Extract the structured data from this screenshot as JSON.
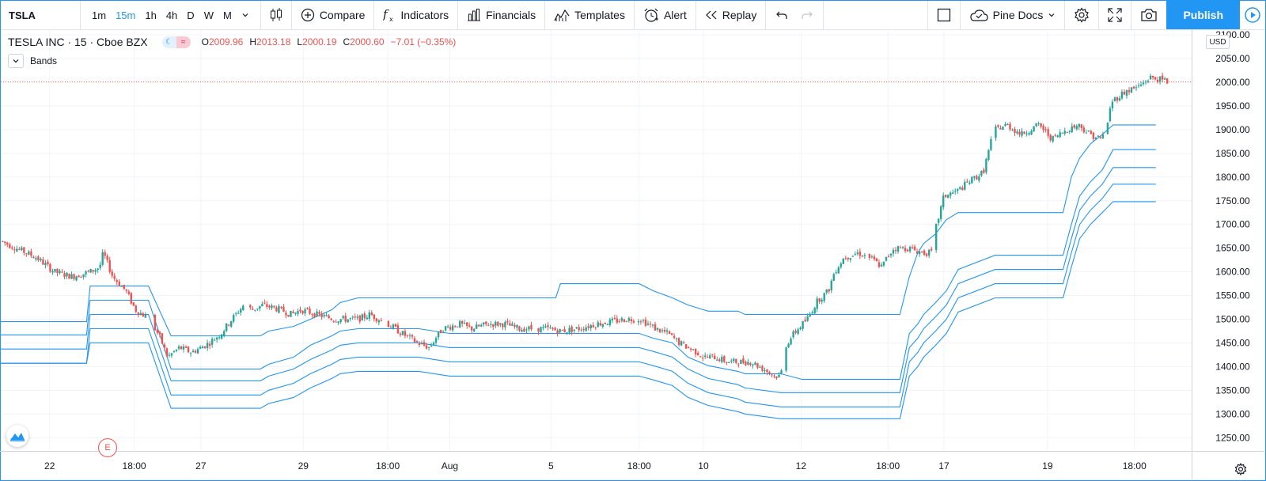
{
  "toolbar": {
    "symbol": "TSLA",
    "intervals": [
      "1m",
      "15m",
      "1h",
      "4h",
      "D",
      "W",
      "M"
    ],
    "active_interval": "15m",
    "compare": "Compare",
    "indicators": "Indicators",
    "financials": "Financials",
    "templates": "Templates",
    "alert": "Alert",
    "replay": "Replay",
    "pine_docs": "Pine Docs",
    "publish": "Publish"
  },
  "legend": {
    "symbol": "TESLA INC · 15 · Cboe BZX",
    "open_label": "O",
    "open": "2009.96",
    "high_label": "H",
    "high": "2013.18",
    "low_label": "L",
    "low": "2000.19",
    "close_label": "C",
    "close": "2000.60",
    "change": "−7.01 (−0.35%)",
    "study": "Bands"
  },
  "price_scale": {
    "currency": "USD",
    "last_price": "2000.60"
  },
  "earnings_marker": "E",
  "colors": {
    "accent": "#2196f3",
    "up": "#26a69a",
    "down": "#ef5350",
    "band": "#2196f3",
    "last_price_line": "#ef5350"
  },
  "chart_data": {
    "type": "candlestick",
    "symbol": "TSLA",
    "interval": "15",
    "exchange": "Cboe BZX",
    "y_ticks": [
      1250,
      1300,
      1350,
      1400,
      1450,
      1500,
      1550,
      1600,
      1650,
      1700,
      1750,
      1800,
      1850,
      1900,
      1950,
      2000,
      2050,
      2100
    ],
    "ylim": [
      1220,
      2110
    ],
    "x_ticks": [
      "22",
      "18:00",
      "27",
      "29",
      "18:00",
      "Aug",
      "5",
      "18:00",
      "10",
      "12",
      "18:00",
      "17",
      "19",
      "18:00"
    ],
    "last_price": 2000.6,
    "price_path": [
      [
        0,
        1665
      ],
      [
        3,
        1630
      ],
      [
        4.5,
        1600
      ],
      [
        6,
        1590
      ],
      [
        7.5,
        1600
      ],
      [
        8.3,
        1610
      ],
      [
        8.6,
        1640
      ],
      [
        9.4,
        1590
      ],
      [
        10.5,
        1560
      ],
      [
        11.3,
        1520
      ],
      [
        12.5,
        1500
      ],
      [
        13.4,
        1460
      ],
      [
        14,
        1420
      ],
      [
        14.5,
        1430
      ],
      [
        15,
        1440
      ],
      [
        16,
        1430
      ],
      [
        16.8,
        1440
      ],
      [
        17.5,
        1450
      ],
      [
        18.5,
        1470
      ],
      [
        19.4,
        1500
      ],
      [
        20.4,
        1530
      ],
      [
        21.1,
        1520
      ],
      [
        22,
        1530
      ],
      [
        23.5,
        1520
      ],
      [
        24.4,
        1510
      ],
      [
        25.2,
        1520
      ],
      [
        26.5,
        1510
      ],
      [
        28,
        1500
      ],
      [
        29,
        1500
      ],
      [
        30,
        1500
      ],
      [
        31,
        1510
      ],
      [
        32.5,
        1490
      ],
      [
        33.7,
        1470
      ],
      [
        35,
        1450
      ],
      [
        36,
        1440
      ],
      [
        36.5,
        1460
      ],
      [
        37.1,
        1480
      ],
      [
        38.5,
        1490
      ],
      [
        39.5,
        1480
      ],
      [
        41,
        1490
      ],
      [
        42.3,
        1490
      ],
      [
        43.5,
        1480
      ],
      [
        45,
        1480
      ],
      [
        46,
        1480
      ],
      [
        47,
        1475
      ],
      [
        48.5,
        1480
      ],
      [
        50,
        1490
      ],
      [
        51.3,
        1495
      ],
      [
        52.5,
        1500
      ],
      [
        53.7,
        1500
      ],
      [
        55,
        1480
      ],
      [
        56,
        1470
      ],
      [
        57,
        1450
      ],
      [
        57.7,
        1440
      ],
      [
        58.5,
        1430
      ],
      [
        59,
        1420
      ],
      [
        60,
        1420
      ],
      [
        61,
        1410
      ],
      [
        62,
        1410
      ],
      [
        63,
        1410
      ],
      [
        63.7,
        1400
      ],
      [
        64.4,
        1390
      ],
      [
        65,
        1380
      ],
      [
        65.5,
        1380
      ],
      [
        65.8,
        1440
      ],
      [
        66.6,
        1470
      ],
      [
        67.7,
        1500
      ],
      [
        68.6,
        1540
      ],
      [
        69.5,
        1560
      ],
      [
        70,
        1600
      ],
      [
        70.8,
        1630
      ],
      [
        72,
        1640
      ],
      [
        73,
        1630
      ],
      [
        74,
        1610
      ],
      [
        74.4,
        1630
      ],
      [
        75,
        1650
      ],
      [
        76.2,
        1650
      ],
      [
        77.5,
        1640
      ],
      [
        78.3,
        1640
      ],
      [
        78.5,
        1690
      ],
      [
        79.2,
        1760
      ],
      [
        80.3,
        1770
      ],
      [
        81.3,
        1790
      ],
      [
        82.5,
        1810
      ],
      [
        83.4,
        1900
      ],
      [
        84.5,
        1910
      ],
      [
        85.7,
        1890
      ],
      [
        86.4,
        1900
      ],
      [
        87.2,
        1910
      ],
      [
        88.3,
        1880
      ],
      [
        89.5,
        1900
      ],
      [
        90.5,
        1910
      ],
      [
        91.5,
        1890
      ],
      [
        92.4,
        1880
      ],
      [
        92.8,
        1900
      ],
      [
        93.3,
        1960
      ],
      [
        94.4,
        1980
      ],
      [
        95.5,
        1990
      ],
      [
        96.5,
        2010
      ],
      [
        97.5,
        2005
      ],
      [
        98,
        2000.6
      ]
    ],
    "bands": [
      {
        "name": "",
        "steps": [
          [
            0,
            1495
          ],
          [
            7.2,
            1495
          ],
          [
            7.5,
            1570
          ],
          [
            12.4,
            1570
          ],
          [
            14.3,
            1465
          ],
          [
            21.8,
            1465
          ],
          [
            22.5,
            1475
          ],
          [
            24.6,
            1485
          ],
          [
            26,
            1500
          ],
          [
            27.8,
            1520
          ],
          [
            28.5,
            1535
          ],
          [
            30,
            1545
          ],
          [
            35.1,
            1545
          ],
          [
            37.7,
            1545
          ],
          [
            46.6,
            1545
          ],
          [
            47,
            1575
          ],
          [
            53.6,
            1575
          ],
          [
            54.8,
            1560
          ],
          [
            56.4,
            1545
          ],
          [
            57.7,
            1530
          ],
          [
            59.4,
            1517
          ],
          [
            61.9,
            1517
          ],
          [
            62.5,
            1510
          ],
          [
            65.5,
            1510
          ],
          [
            67.3,
            1510
          ],
          [
            75.5,
            1510
          ],
          [
            76.3,
            1590
          ],
          [
            77,
            1640
          ],
          [
            77.5,
            1660
          ],
          [
            78.5,
            1680
          ],
          [
            79.4,
            1710
          ],
          [
            80.4,
            1725
          ],
          [
            83.5,
            1725
          ],
          [
            85.6,
            1725
          ],
          [
            89.2,
            1725
          ],
          [
            89.9,
            1800
          ],
          [
            90.6,
            1840
          ],
          [
            91.5,
            1870
          ],
          [
            92.5,
            1890
          ],
          [
            93.4,
            1910
          ],
          [
            97,
            1910
          ]
        ]
      },
      {
        "name": "",
        "steps": [
          [
            0,
            1467
          ],
          [
            7.2,
            1467
          ],
          [
            7.5,
            1540
          ],
          [
            12.4,
            1540
          ],
          [
            14.3,
            1395
          ],
          [
            21.8,
            1395
          ],
          [
            22.5,
            1405
          ],
          [
            24.6,
            1420
          ],
          [
            26,
            1445
          ],
          [
            27.8,
            1465
          ],
          [
            28.5,
            1475
          ],
          [
            30,
            1480
          ],
          [
            35.1,
            1480
          ],
          [
            37.7,
            1470
          ],
          [
            46.6,
            1470
          ],
          [
            47,
            1470
          ],
          [
            53.6,
            1470
          ],
          [
            54.8,
            1460
          ],
          [
            56.4,
            1450
          ],
          [
            57.7,
            1420
          ],
          [
            59.4,
            1402
          ],
          [
            61.9,
            1390
          ],
          [
            62.5,
            1385
          ],
          [
            65.5,
            1385
          ],
          [
            67.3,
            1373
          ],
          [
            75.5,
            1373
          ],
          [
            76.3,
            1470
          ],
          [
            77,
            1490
          ],
          [
            77.5,
            1510
          ],
          [
            78.5,
            1535
          ],
          [
            79.4,
            1560
          ],
          [
            80.4,
            1605
          ],
          [
            83.5,
            1635
          ],
          [
            85.6,
            1635
          ],
          [
            89.2,
            1635
          ],
          [
            89.9,
            1700
          ],
          [
            90.6,
            1760
          ],
          [
            91.5,
            1790
          ],
          [
            92.5,
            1815
          ],
          [
            93.4,
            1858
          ],
          [
            97,
            1858
          ]
        ]
      },
      {
        "name": "",
        "steps": [
          [
            0,
            1437
          ],
          [
            7.2,
            1437
          ],
          [
            7.5,
            1510
          ],
          [
            12.4,
            1510
          ],
          [
            14.3,
            1370
          ],
          [
            21.8,
            1370
          ],
          [
            22.5,
            1380
          ],
          [
            24.6,
            1395
          ],
          [
            26,
            1415
          ],
          [
            27.8,
            1435
          ],
          [
            28.5,
            1445
          ],
          [
            30,
            1450
          ],
          [
            35.1,
            1450
          ],
          [
            37.7,
            1440
          ],
          [
            46.6,
            1440
          ],
          [
            47,
            1440
          ],
          [
            53.6,
            1440
          ],
          [
            54.8,
            1432
          ],
          [
            56.4,
            1420
          ],
          [
            57.7,
            1395
          ],
          [
            59.4,
            1375
          ],
          [
            61.9,
            1362
          ],
          [
            62.5,
            1355
          ],
          [
            65.5,
            1345
          ],
          [
            67.3,
            1345
          ],
          [
            75.5,
            1345
          ],
          [
            76.3,
            1440
          ],
          [
            77,
            1460
          ],
          [
            77.5,
            1480
          ],
          [
            78.5,
            1505
          ],
          [
            79.4,
            1530
          ],
          [
            80.4,
            1575
          ],
          [
            83.5,
            1605
          ],
          [
            85.6,
            1605
          ],
          [
            89.2,
            1605
          ],
          [
            89.9,
            1670
          ],
          [
            90.6,
            1730
          ],
          [
            91.5,
            1760
          ],
          [
            92.5,
            1785
          ],
          [
            93.4,
            1820
          ],
          [
            97,
            1820
          ]
        ]
      },
      {
        "name": "",
        "steps": [
          [
            0,
            1407
          ],
          [
            7.2,
            1407
          ],
          [
            7.5,
            1480
          ],
          [
            12.4,
            1480
          ],
          [
            14.3,
            1340
          ],
          [
            21.8,
            1340
          ],
          [
            22.5,
            1350
          ],
          [
            24.6,
            1365
          ],
          [
            26,
            1385
          ],
          [
            27.8,
            1405
          ],
          [
            28.5,
            1415
          ],
          [
            30,
            1420
          ],
          [
            35.1,
            1420
          ],
          [
            37.7,
            1410
          ],
          [
            46.6,
            1410
          ],
          [
            47,
            1410
          ],
          [
            53.6,
            1410
          ],
          [
            54.8,
            1402
          ],
          [
            56.4,
            1390
          ],
          [
            57.7,
            1365
          ],
          [
            59.4,
            1345
          ],
          [
            61.9,
            1332
          ],
          [
            62.5,
            1325
          ],
          [
            65.5,
            1315
          ],
          [
            67.3,
            1315
          ],
          [
            75.5,
            1315
          ],
          [
            76.3,
            1410
          ],
          [
            77,
            1430
          ],
          [
            77.5,
            1450
          ],
          [
            78.5,
            1475
          ],
          [
            79.4,
            1500
          ],
          [
            80.4,
            1545
          ],
          [
            83.5,
            1575
          ],
          [
            85.6,
            1575
          ],
          [
            89.2,
            1575
          ],
          [
            89.9,
            1640
          ],
          [
            90.6,
            1700
          ],
          [
            91.5,
            1730
          ],
          [
            92.5,
            1755
          ],
          [
            93.4,
            1785
          ],
          [
            97,
            1785
          ]
        ]
      },
      {
        "name": "",
        "steps": [
          [
            0,
            1407
          ],
          [
            7.2,
            1407
          ],
          [
            7.5,
            1450
          ],
          [
            12.4,
            1450
          ],
          [
            14.3,
            1312
          ],
          [
            21.8,
            1312
          ],
          [
            22.5,
            1322
          ],
          [
            24.6,
            1335
          ],
          [
            26,
            1355
          ],
          [
            27.8,
            1375
          ],
          [
            28.5,
            1385
          ],
          [
            30,
            1390
          ],
          [
            35.1,
            1390
          ],
          [
            37.7,
            1380
          ],
          [
            46.6,
            1380
          ],
          [
            47,
            1380
          ],
          [
            53.6,
            1380
          ],
          [
            54.8,
            1372
          ],
          [
            56.4,
            1360
          ],
          [
            57.7,
            1335
          ],
          [
            59.4,
            1318
          ],
          [
            61.9,
            1305
          ],
          [
            62.5,
            1300
          ],
          [
            65.5,
            1290
          ],
          [
            67.3,
            1290
          ],
          [
            75.5,
            1290
          ],
          [
            76.3,
            1380
          ],
          [
            77,
            1400
          ],
          [
            77.5,
            1420
          ],
          [
            78.5,
            1445
          ],
          [
            79.4,
            1470
          ],
          [
            80.4,
            1515
          ],
          [
            83.5,
            1545
          ],
          [
            85.6,
            1545
          ],
          [
            89.2,
            1545
          ],
          [
            89.9,
            1610
          ],
          [
            90.6,
            1670
          ],
          [
            91.5,
            1700
          ],
          [
            92.5,
            1725
          ],
          [
            93.4,
            1748
          ],
          [
            97,
            1748
          ]
        ]
      }
    ],
    "grid": true
  }
}
